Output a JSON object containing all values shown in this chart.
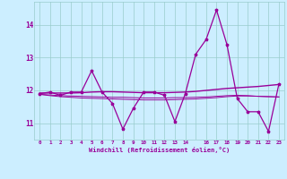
{
  "xlabel": "Windchill (Refroidissement éolien,°C)",
  "x_values": [
    0,
    1,
    2,
    3,
    4,
    5,
    6,
    7,
    8,
    9,
    10,
    11,
    12,
    13,
    14,
    15,
    16,
    17,
    18,
    19,
    20,
    21,
    22,
    23
  ],
  "x_tick_labels": [
    "0",
    "1",
    "2",
    "3",
    "4",
    "5",
    "6",
    "7",
    "8",
    "9",
    "10",
    "11",
    "12",
    "13",
    "14",
    "",
    "16",
    "17",
    "18",
    "19",
    "20",
    "21",
    "22",
    "23"
  ],
  "main_line": [
    11.9,
    11.95,
    11.85,
    11.95,
    11.95,
    12.6,
    11.95,
    11.6,
    10.82,
    11.45,
    11.95,
    11.95,
    11.85,
    11.05,
    11.9,
    13.1,
    13.55,
    14.45,
    13.4,
    11.75,
    11.35,
    11.35,
    10.75,
    12.2
  ],
  "smooth_line1": [
    11.92,
    11.92,
    11.92,
    11.92,
    11.93,
    11.95,
    11.96,
    11.96,
    11.95,
    11.94,
    11.93,
    11.93,
    11.93,
    11.94,
    11.95,
    11.97,
    12.0,
    12.03,
    12.06,
    12.08,
    12.1,
    12.12,
    12.15,
    12.18
  ],
  "smooth_line2": [
    11.88,
    11.84,
    11.81,
    11.79,
    11.77,
    11.76,
    11.75,
    11.74,
    11.73,
    11.72,
    11.71,
    11.71,
    11.71,
    11.72,
    11.73,
    11.74,
    11.76,
    11.78,
    11.81,
    11.83,
    11.83,
    11.82,
    11.81,
    11.8
  ],
  "smooth_line3": [
    11.88,
    11.86,
    11.84,
    11.83,
    11.82,
    11.81,
    11.8,
    11.79,
    11.79,
    11.78,
    11.77,
    11.77,
    11.77,
    11.78,
    11.78,
    11.79,
    11.8,
    11.82,
    11.84,
    11.85,
    11.84,
    11.82,
    11.81,
    11.8
  ],
  "line_color": "#990099",
  "bg_color": "#cceeff",
  "grid_color": "#99cccc",
  "ylim": [
    10.5,
    14.7
  ],
  "yticks": [
    11,
    12,
    13,
    14
  ]
}
